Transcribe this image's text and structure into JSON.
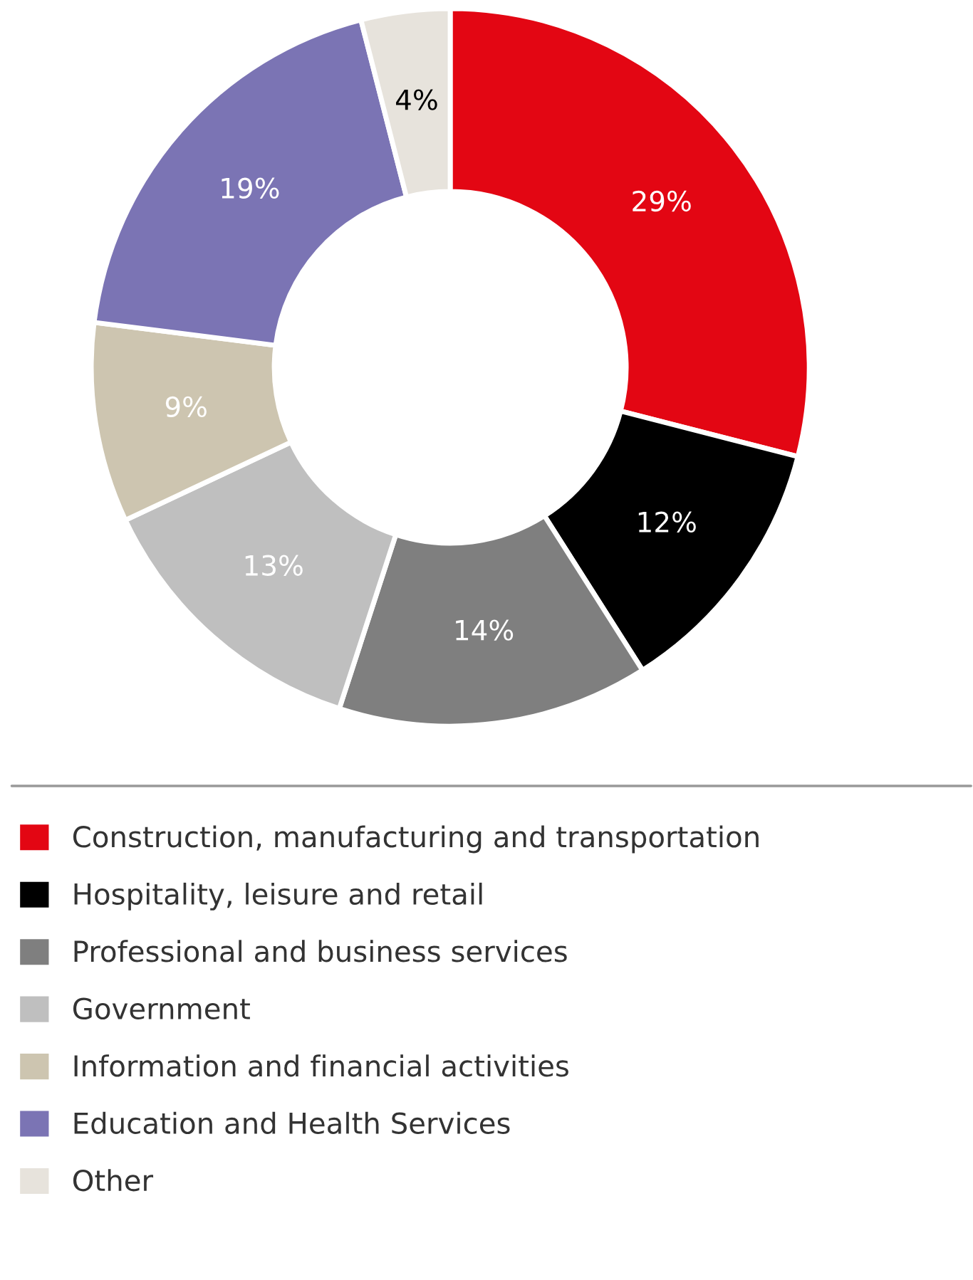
{
  "chart_data": {
    "type": "donut",
    "categories": [
      "Construction, manufacturing and transportation",
      "Hospitality, leisure and retail",
      "Professional and business services",
      "Government",
      "Information and financial activities",
      "Education and Health Services",
      "Other"
    ],
    "values": [
      29,
      12,
      14,
      13,
      9,
      19,
      4
    ],
    "value_labels": [
      "29%",
      "12%",
      "14%",
      "13%",
      "9%",
      "19%",
      "4%"
    ],
    "colors": [
      "#e30613",
      "#000000",
      "#7f7f7f",
      "#bfbfbf",
      "#cdc5b0",
      "#7b74b4",
      "#e7e3dc"
    ],
    "legend": "bottom"
  }
}
